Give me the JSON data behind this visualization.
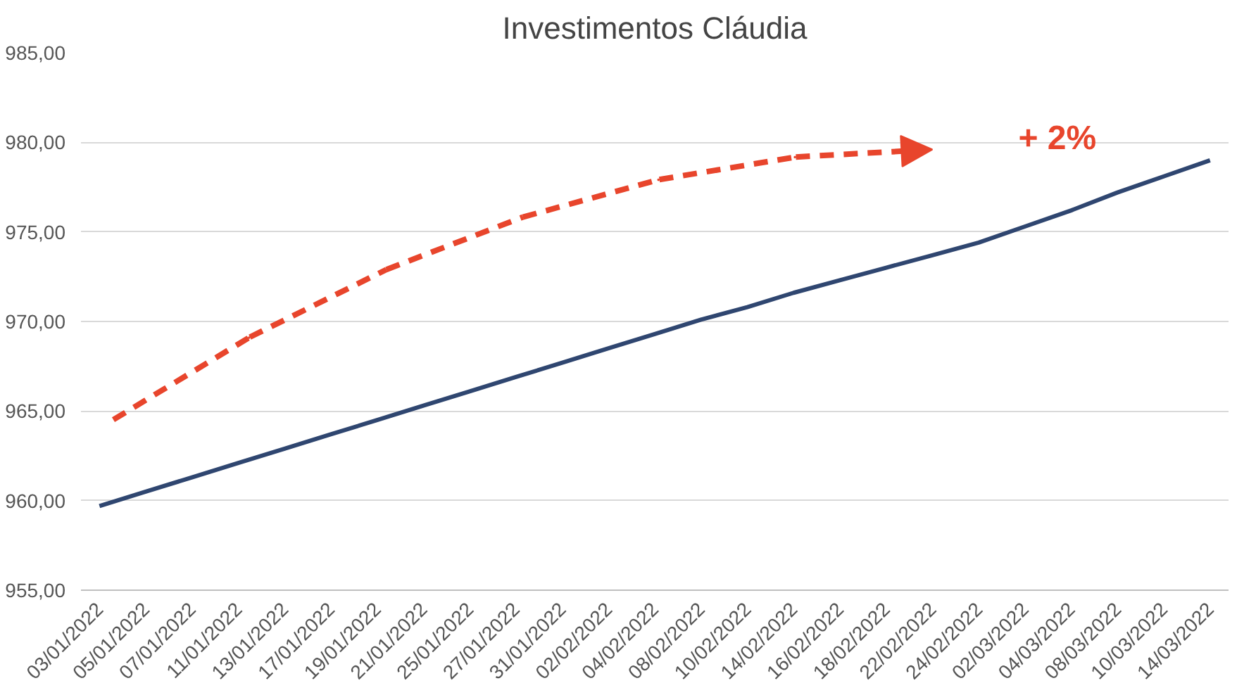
{
  "chart_data": {
    "type": "line",
    "title": "Investimentos Cláudia",
    "categories": [
      "03/01/2022",
      "05/01/2022",
      "07/01/2022",
      "11/01/2022",
      "13/01/2022",
      "17/01/2022",
      "19/01/2022",
      "21/01/2022",
      "25/01/2022",
      "27/01/2022",
      "31/01/2022",
      "02/02/2022",
      "04/02/2022",
      "08/02/2022",
      "10/02/2022",
      "14/02/2022",
      "16/02/2022",
      "18/02/2022",
      "22/02/2022",
      "24/02/2022",
      "02/03/2022",
      "04/03/2022",
      "08/03/2022",
      "10/03/2022",
      "14/03/2022"
    ],
    "series": [
      {
        "color": "#2f4670",
        "values": [
          959.7,
          960.5,
          961.3,
          962.1,
          962.9,
          963.7,
          964.5,
          965.3,
          966.1,
          966.9,
          967.7,
          968.5,
          969.3,
          970.1,
          970.8,
          971.6,
          972.3,
          973.0,
          973.7,
          974.4,
          975.3,
          976.2,
          977.2,
          978.1,
          979.0
        ]
      }
    ],
    "ylim": [
      955,
      985
    ],
    "yticks": [
      {
        "value": 955,
        "label": "955,00"
      },
      {
        "value": 960,
        "label": "960,00"
      },
      {
        "value": 965,
        "label": "965,00"
      },
      {
        "value": 970,
        "label": "970,00"
      },
      {
        "value": 975,
        "label": "975,00"
      },
      {
        "value": 980,
        "label": "980,00"
      },
      {
        "value": 985,
        "label": "985,00"
      }
    ],
    "grid": "y",
    "marker": "none",
    "line_style": "solid",
    "annotations": [
      "+ 2%"
    ]
  }
}
